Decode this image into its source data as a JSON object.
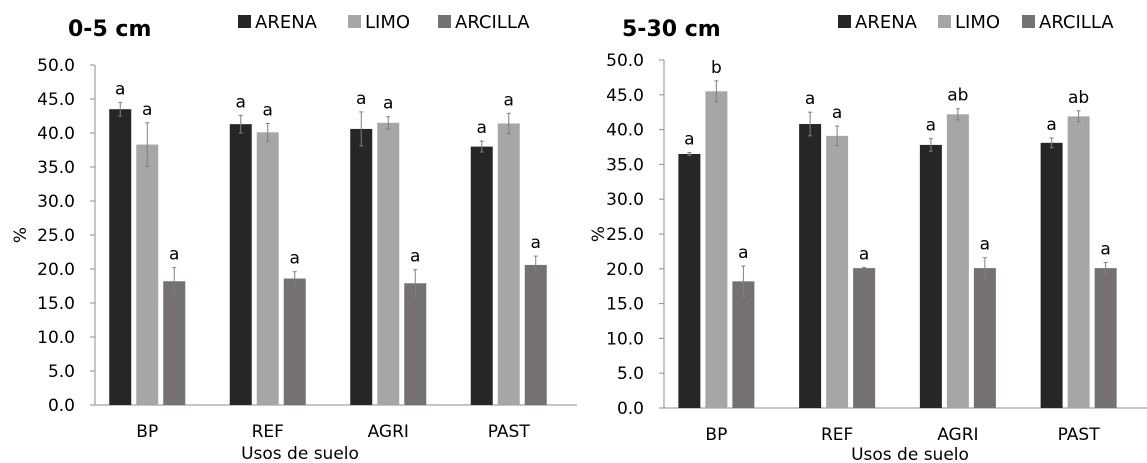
{
  "chart_data": [
    {
      "type": "bar",
      "title": "0-5 cm",
      "xlabel": "Usos de suelo",
      "ylabel": "%",
      "ylim": [
        0,
        50
      ],
      "yticks": [
        "0.0",
        "5.0",
        "10.0",
        "15.0",
        "20.0",
        "25.0",
        "30.0",
        "35.0",
        "40.0",
        "45.0",
        "50.0"
      ],
      "categories": [
        "BP",
        "REF",
        "AGRI",
        "PAST"
      ],
      "legend_position": "top-right",
      "grid": false,
      "series": [
        {
          "name": "ARENA",
          "color": "#262626",
          "values": [
            43.5,
            41.3,
            40.6,
            38.0
          ],
          "errors": [
            1.0,
            1.3,
            2.5,
            0.8
          ],
          "labels": [
            "a",
            "a",
            "a",
            "a"
          ]
        },
        {
          "name": "LIMO",
          "color": "#a6a6a6",
          "values": [
            38.3,
            40.1,
            41.5,
            41.4
          ],
          "errors": [
            3.2,
            1.3,
            0.9,
            1.5
          ],
          "labels": [
            "a",
            "a",
            "a",
            "a"
          ]
        },
        {
          "name": "ARCILLA",
          "color": "#767171",
          "values": [
            18.2,
            18.6,
            17.9,
            20.6
          ],
          "errors": [
            2.0,
            1.0,
            2.0,
            1.3
          ],
          "labels": [
            "a",
            "a",
            "a",
            "a"
          ]
        }
      ]
    },
    {
      "type": "bar",
      "title": "5-30 cm",
      "xlabel": "Usos de suelo",
      "ylabel": "%",
      "ylim": [
        0,
        50
      ],
      "yticks": [
        "0.0",
        "5.0",
        "10.0",
        "15.0",
        "20.0",
        "25.0",
        "30.0",
        "35.0",
        "40.0",
        "45.0",
        "50.0"
      ],
      "categories": [
        "BP",
        "REF",
        "AGRI",
        "PAST"
      ],
      "legend_position": "top-right",
      "grid": false,
      "series": [
        {
          "name": "ARENA",
          "color": "#262626",
          "values": [
            36.5,
            40.8,
            37.8,
            38.1
          ],
          "errors": [
            0.2,
            1.7,
            0.9,
            0.7
          ],
          "labels": [
            "a",
            "a",
            "a",
            "a"
          ]
        },
        {
          "name": "LIMO",
          "color": "#a6a6a6",
          "values": [
            45.5,
            39.1,
            42.2,
            41.9
          ],
          "errors": [
            1.5,
            1.4,
            0.8,
            0.8
          ],
          "labels": [
            "b",
            "a",
            "ab",
            "ab"
          ]
        },
        {
          "name": "ARCILLA",
          "color": "#767171",
          "values": [
            18.2,
            20.1,
            20.1,
            20.1
          ],
          "errors": [
            2.2,
            0.1,
            1.5,
            0.8
          ],
          "labels": [
            "a",
            "a",
            "a",
            "a"
          ]
        }
      ]
    }
  ]
}
